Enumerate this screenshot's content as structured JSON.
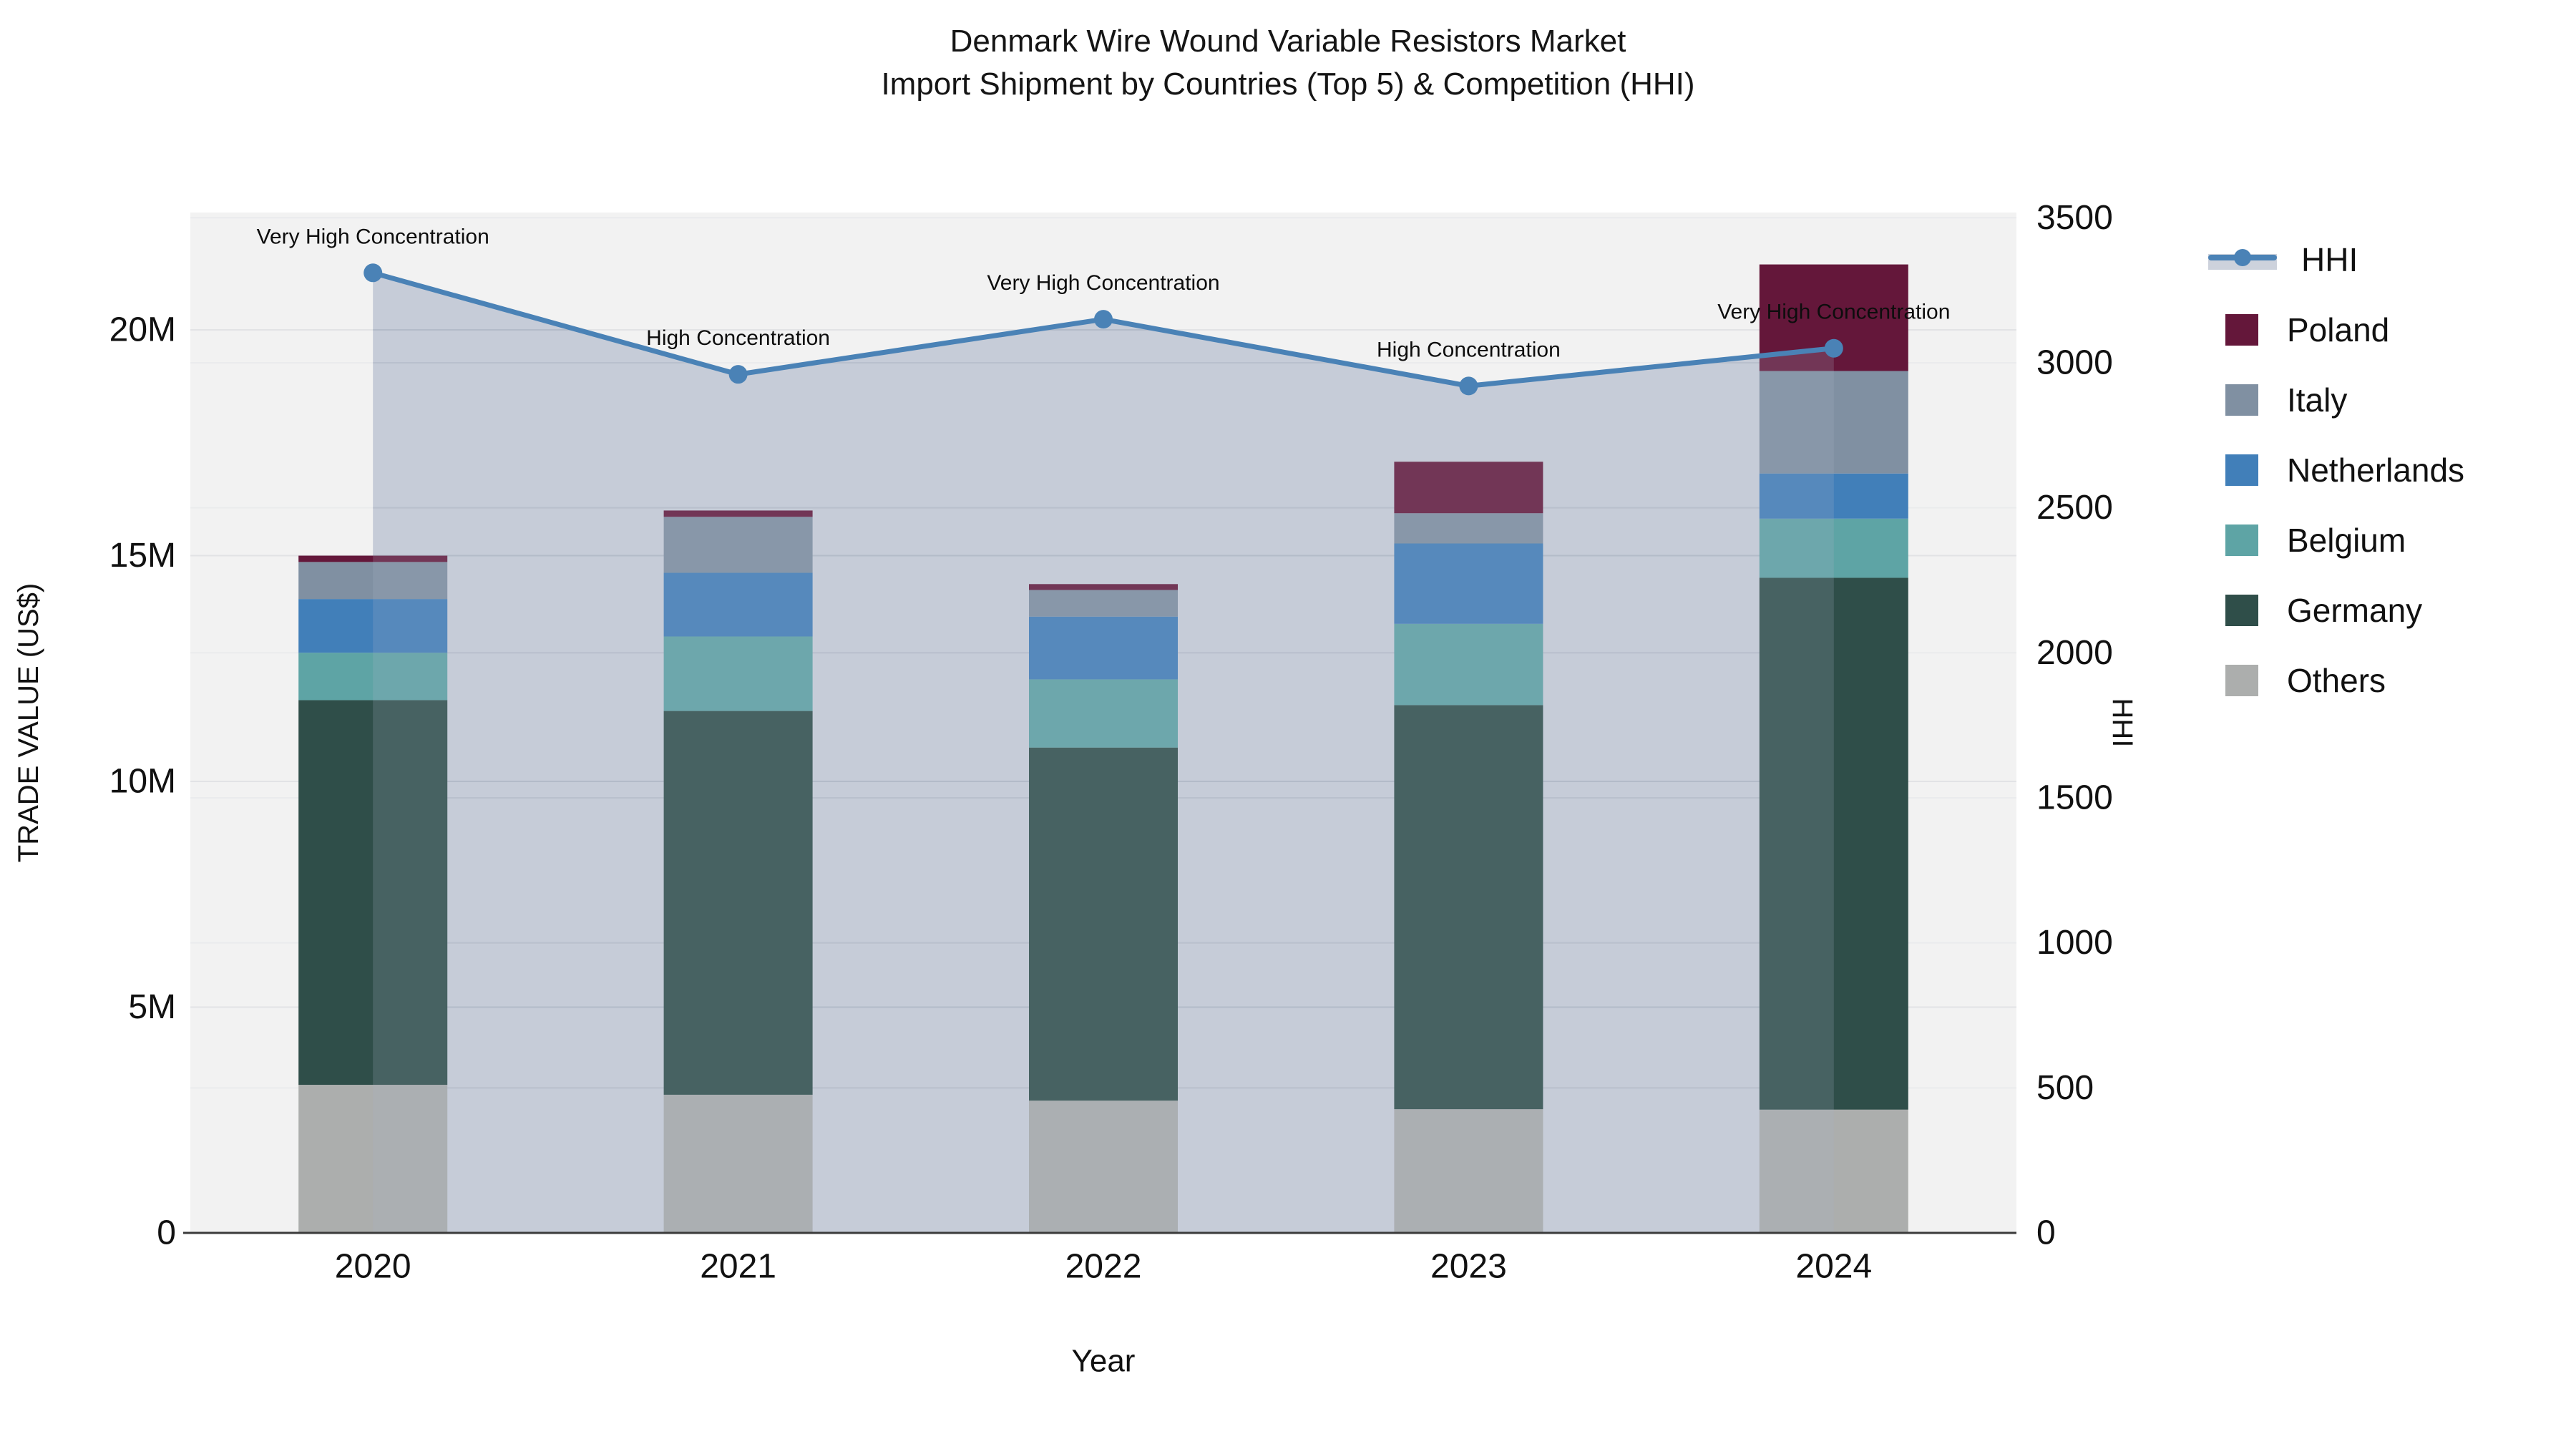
{
  "title": {
    "line1": "Denmark Wire Wound Variable Resistors Market",
    "line2": "Import Shipment by Countries (Top 5) & Competition (HHI)"
  },
  "chart_data": {
    "type": "bar",
    "subtype": "stacked-bars-with-hhi-line-and-area",
    "x": [
      "2020",
      "2021",
      "2022",
      "2023",
      "2024"
    ],
    "xlabel": "Year",
    "ylabel_left": "TRADE VALUE (US$)",
    "ylabel_right": "HHI",
    "series": [
      {
        "name": "Others",
        "color": "#ACAEAD",
        "values_musd": [
          3.28,
          3.06,
          2.93,
          2.74,
          2.73
        ]
      },
      {
        "name": "Germany",
        "color": "#2F4E49",
        "values_musd": [
          8.52,
          8.5,
          7.82,
          8.95,
          11.78
        ]
      },
      {
        "name": "Belgium",
        "color": "#5EA4A5",
        "values_musd": [
          1.05,
          1.65,
          1.51,
          1.8,
          1.31
        ]
      },
      {
        "name": "Netherlands",
        "color": "#417FB9",
        "values_musd": [
          1.19,
          1.41,
          1.39,
          1.78,
          1.0
        ]
      },
      {
        "name": "Italy",
        "color": "#8090A2",
        "values_musd": [
          0.82,
          1.24,
          0.59,
          0.67,
          2.27
        ]
      },
      {
        "name": "Poland",
        "color": "#64173A",
        "values_musd": [
          0.14,
          0.14,
          0.13,
          1.14,
          2.36
        ]
      }
    ],
    "bar_totals_musd": [
      15.0,
      16.0,
      14.4,
      17.1,
      21.4
    ],
    "line_series": {
      "name": "HHI",
      "color": "#4A82B6",
      "area_fill_color": "#CDD2DC",
      "area_overlay_rgba": "rgba(170,180,200,0.2)",
      "values": [
        3310,
        2960,
        3150,
        2920,
        3050
      ]
    },
    "annotations": [
      "Very High Concentration",
      "High Concentration",
      "Very High Concentration",
      "High Concentration",
      "Very High Concentration"
    ],
    "left_ticks": [
      {
        "label": "0",
        "value": 0
      },
      {
        "label": "5M",
        "value": 5
      },
      {
        "label": "10M",
        "value": 10
      },
      {
        "label": "15M",
        "value": 15
      },
      {
        "label": "20M",
        "value": 20
      }
    ],
    "right_ticks": [
      {
        "label": "0",
        "value": 0
      },
      {
        "label": "500",
        "value": 500
      },
      {
        "label": "1000",
        "value": 1000
      },
      {
        "label": "1500",
        "value": 1500
      },
      {
        "label": "2000",
        "value": 2000
      },
      {
        "label": "2500",
        "value": 2500
      },
      {
        "label": "3000",
        "value": 3000
      },
      {
        "label": "3500",
        "value": 3500
      }
    ],
    "axes": {
      "left_range_musd": [
        0,
        22.6
      ],
      "right_range": [
        0,
        3518
      ],
      "grid": true,
      "plot_bg": "#F2F2F2",
      "grid_color_left": "#E2E3E5",
      "grid_color_right": "#EAEBED",
      "axis_line_color": "#3B3B3B",
      "legend_position": "right"
    },
    "legend": [
      {
        "label": "HHI",
        "swatch": "line"
      },
      {
        "label": "Poland",
        "swatch": "series"
      },
      {
        "label": "Italy",
        "swatch": "series"
      },
      {
        "label": "Netherlands",
        "swatch": "series"
      },
      {
        "label": "Belgium",
        "swatch": "series"
      },
      {
        "label": "Germany",
        "swatch": "series"
      },
      {
        "label": "Others",
        "swatch": "series"
      }
    ]
  }
}
